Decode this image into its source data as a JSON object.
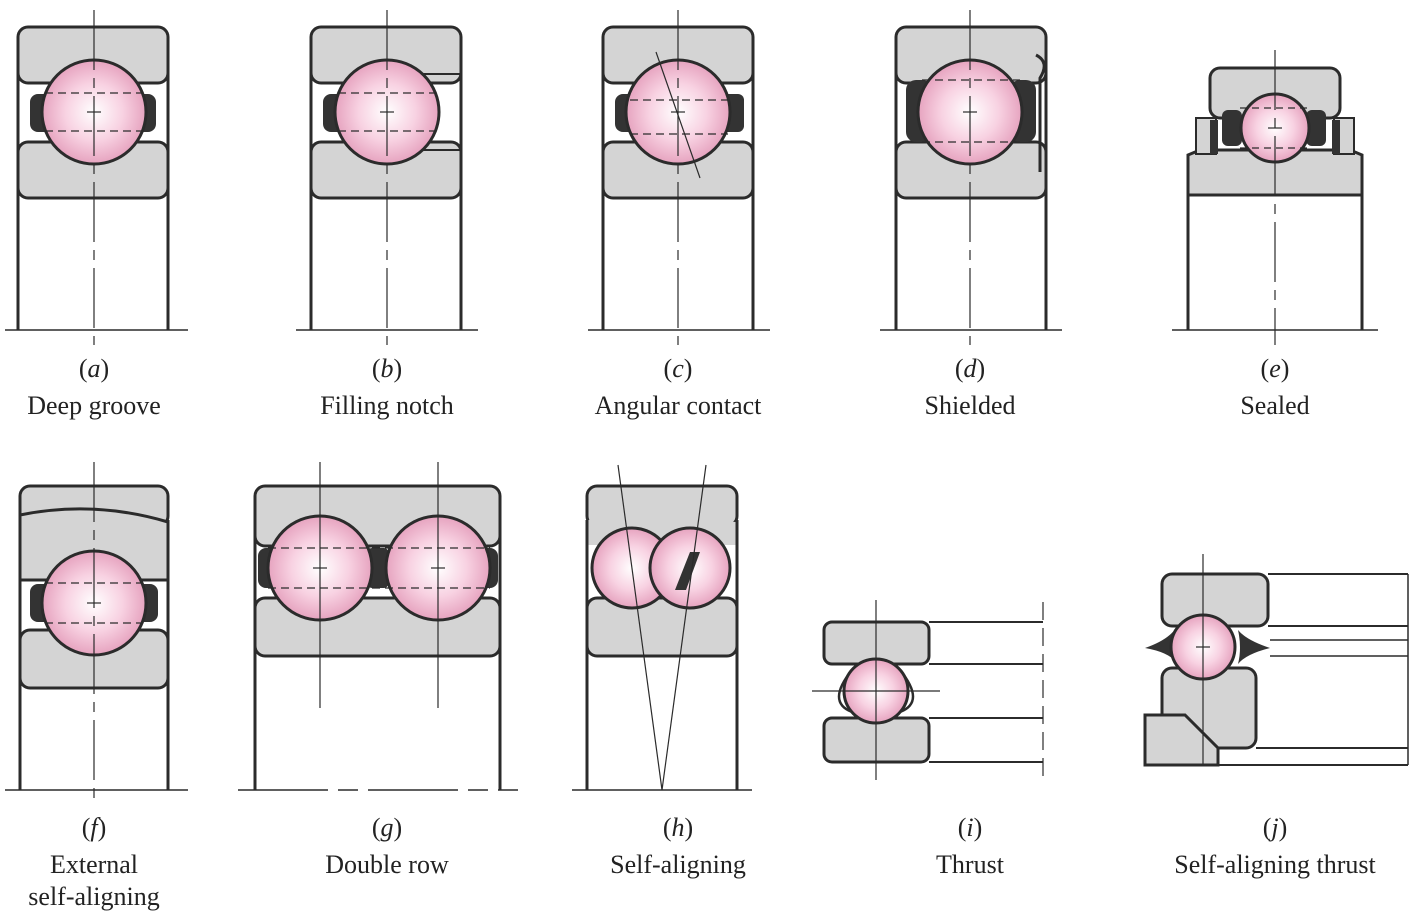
{
  "colors": {
    "ring_fill": "#d4d4d4",
    "line": "#2b2b2b",
    "ball_center": "#ffffff",
    "ball_mid": "#f8d2e2",
    "ball_edge": "#e6a3bf",
    "cage": "#333333"
  },
  "figures": [
    {
      "id": "a",
      "letter": "a",
      "name_lines": [
        "Deep groove"
      ]
    },
    {
      "id": "b",
      "letter": "b",
      "name_lines": [
        "Filling notch"
      ]
    },
    {
      "id": "c",
      "letter": "c",
      "name_lines": [
        "Angular contact"
      ]
    },
    {
      "id": "d",
      "letter": "d",
      "name_lines": [
        "Shielded"
      ]
    },
    {
      "id": "e",
      "letter": "e",
      "name_lines": [
        "Sealed"
      ]
    },
    {
      "id": "f",
      "letter": "f",
      "name_lines": [
        "External",
        "self-aligning"
      ]
    },
    {
      "id": "g",
      "letter": "g",
      "name_lines": [
        "Double row"
      ]
    },
    {
      "id": "h",
      "letter": "h",
      "name_lines": [
        "Self-aligning"
      ]
    },
    {
      "id": "i",
      "letter": "i",
      "name_lines": [
        "Thrust"
      ]
    },
    {
      "id": "j",
      "letter": "j",
      "name_lines": [
        "Self-aligning thrust"
      ]
    }
  ]
}
